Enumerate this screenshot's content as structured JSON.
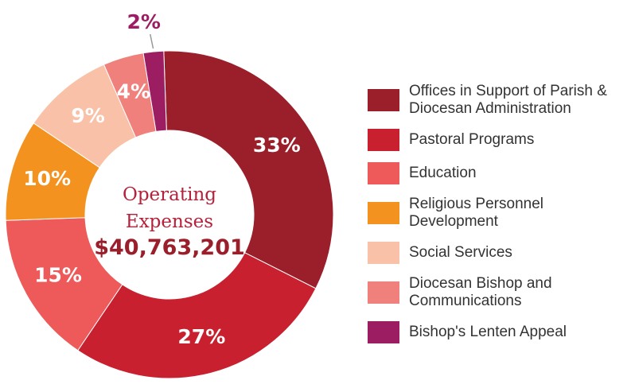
{
  "chart_data": {
    "type": "donut",
    "center_title": "Operating Expenses",
    "center_value": "$40,763,201",
    "categories": [
      "Offices in Support of Parish & Diocesan Administration",
      "Pastoral Programs",
      "Education",
      "Religious Personnel Development",
      "Social Services",
      "Diocesan Bishop and Communications",
      "Bishop's Lenten Appeal"
    ],
    "values": [
      33,
      27,
      15,
      10,
      9,
      4,
      2
    ],
    "value_labels": [
      "33%",
      "27%",
      "15%",
      "10%",
      "9%",
      "4%",
      "2%"
    ],
    "colors": [
      "#9b1f2b",
      "#c8202f",
      "#ee5a5a",
      "#f3921f",
      "#f9c2a8",
      "#ef807b",
      "#9c1d62"
    ],
    "legend": "right"
  }
}
